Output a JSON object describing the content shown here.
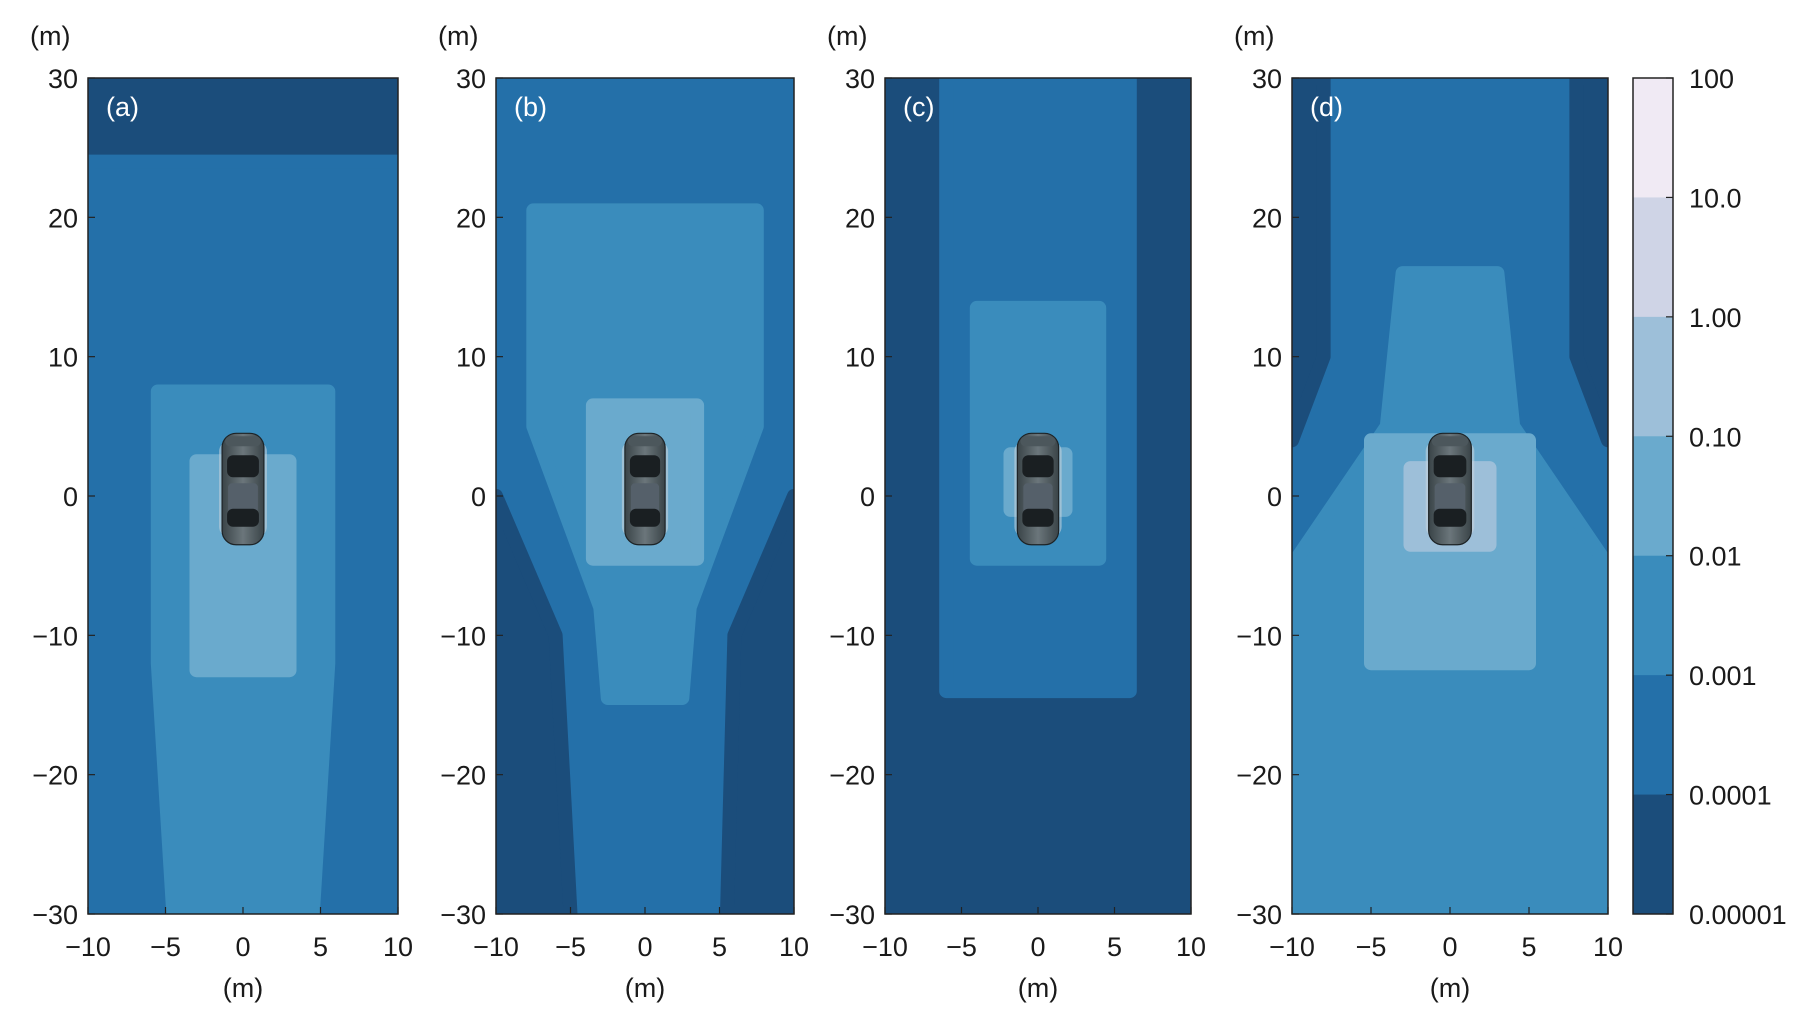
{
  "chart_data": {
    "type": "heatmap",
    "axis_unit": "(m)",
    "xlim": [
      -10,
      10
    ],
    "ylim": [
      -30,
      30
    ],
    "xticks": [
      "−10",
      "−5",
      "0",
      "5",
      "10"
    ],
    "yticks": [
      "30",
      "20",
      "10",
      "0",
      "−10",
      "−20",
      "−30"
    ],
    "colorbar": {
      "scale": "log",
      "labels": [
        "100",
        "10.0",
        "1.00",
        "0.10",
        "0.01",
        "0.001",
        "0.0001",
        "0.00001"
      ],
      "colors": [
        "#f0eaf4",
        "#cfd4e6",
        "#9dbfd9",
        "#6aaacd",
        "#3a8cbc",
        "#2470a9",
        "#1b4d7b"
      ]
    },
    "vehicle": "car-top-view",
    "panels": [
      {
        "label": "(a)",
        "background_level": 0,
        "contours": [
          {
            "level": 1,
            "outline": [
              [
                -10,
                24
              ],
              [
                10,
                24
              ],
              [
                10,
                -30
              ],
              [
                -10,
                -30
              ]
            ]
          },
          {
            "level": 2,
            "outline": [
              [
                -5.5,
                7.5
              ],
              [
                5.5,
                7.5
              ],
              [
                5.5,
                -12
              ],
              [
                4.5,
                -30
              ],
              [
                -4.5,
                -30
              ],
              [
                -5.5,
                -12
              ]
            ]
          },
          {
            "level": 3,
            "outline": [
              [
                -3,
                2.5
              ],
              [
                3,
                2.5
              ],
              [
                3,
                -12.5
              ],
              [
                -3,
                -12.5
              ]
            ]
          }
        ]
      },
      {
        "label": "(b)",
        "background_level": 1,
        "contours": [
          {
            "level": 0,
            "outline": [
              [
                -10,
                0
              ],
              [
                -6,
                -10
              ],
              [
                -5,
                -30
              ],
              [
                -10,
                -30
              ]
            ]
          },
          {
            "level": 0,
            "outline": [
              [
                10,
                0
              ],
              [
                6,
                -10
              ],
              [
                5.5,
                -30
              ],
              [
                10,
                -30
              ]
            ]
          },
          {
            "level": 2,
            "outline": [
              [
                -7.5,
                20.5
              ],
              [
                7.5,
                20.5
              ],
              [
                7.5,
                5
              ],
              [
                3,
                -8
              ],
              [
                2.5,
                -14.5
              ],
              [
                -2.5,
                -14.5
              ],
              [
                -3,
                -8
              ],
              [
                -7.5,
                5
              ]
            ]
          },
          {
            "level": 3,
            "outline": [
              [
                -3.5,
                6.5
              ],
              [
                3.5,
                6.5
              ],
              [
                3.5,
                -4.5
              ],
              [
                -3.5,
                -4.5
              ]
            ]
          }
        ]
      },
      {
        "label": "(c)",
        "background_level": 0,
        "contours": [
          {
            "level": 1,
            "outline": [
              [
                -6,
                30
              ],
              [
                6,
                30
              ],
              [
                6,
                -14
              ],
              [
                -6,
                -14
              ]
            ]
          },
          {
            "level": 2,
            "outline": [
              [
                -4,
                13.5
              ],
              [
                4,
                13.5
              ],
              [
                4,
                -4.5
              ],
              [
                -4,
                -4.5
              ]
            ]
          },
          {
            "level": 3,
            "outline": [
              [
                -1.8,
                3
              ],
              [
                1.8,
                3
              ],
              [
                1.8,
                -1
              ],
              [
                -1.8,
                -1
              ]
            ]
          }
        ]
      },
      {
        "label": "(d)",
        "background_level": 1,
        "contours": [
          {
            "level": 0,
            "outline": [
              [
                -10,
                30
              ],
              [
                -8,
                30
              ],
              [
                -8,
                10
              ],
              [
                -10,
                4
              ]
            ]
          },
          {
            "level": 0,
            "outline": [
              [
                10,
                30
              ],
              [
                8,
                30
              ],
              [
                8,
                10
              ],
              [
                10,
                4
              ]
            ]
          },
          {
            "level": 2,
            "outline": [
              [
                -3,
                16
              ],
              [
                3,
                16
              ],
              [
                4,
                5
              ],
              [
                10,
                -5
              ],
              [
                10,
                -30
              ],
              [
                -10,
                -30
              ],
              [
                -10,
                -5
              ],
              [
                -4,
                5
              ]
            ]
          },
          {
            "level": 3,
            "outline": [
              [
                -5,
                4
              ],
              [
                5,
                4
              ],
              [
                5,
                -12
              ],
              [
                -5,
                -12
              ]
            ]
          },
          {
            "level": 4,
            "outline": [
              [
                -2.5,
                2
              ],
              [
                2.5,
                2
              ],
              [
                2.5,
                -3.5
              ],
              [
                -2.5,
                -3.5
              ]
            ]
          }
        ]
      }
    ]
  }
}
